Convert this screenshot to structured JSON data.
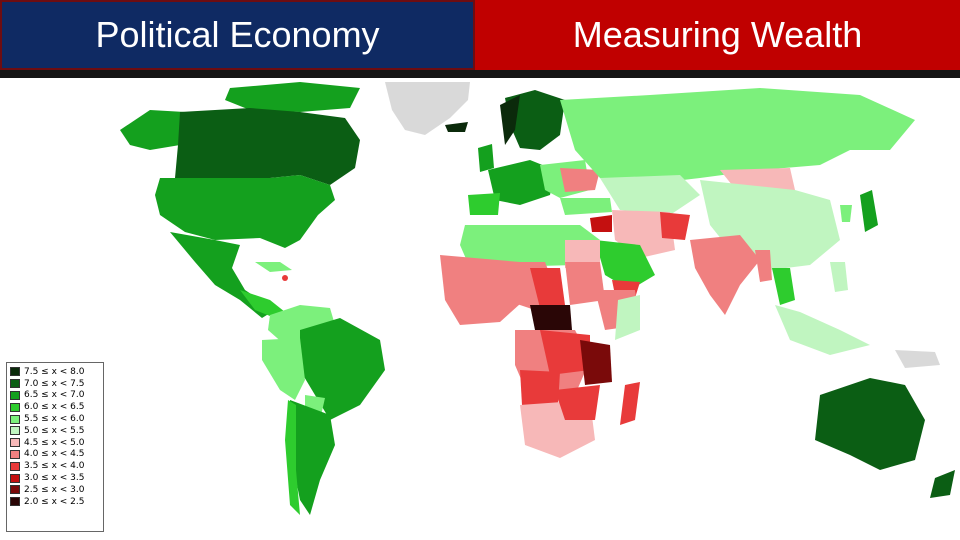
{
  "header": {
    "left_title": "Political Economy",
    "right_title": "Measuring Wealth"
  },
  "colors": {
    "left_band": "#0f2a63",
    "right_band": "#c00000",
    "no_data": "#d9d9d9"
  },
  "legend": {
    "items": [
      {
        "label": "7.5 ≤ x < 8.0",
        "color": "#0b2a0b"
      },
      {
        "label": "7.0 ≤ x < 7.5",
        "color": "#0b5e14"
      },
      {
        "label": "6.5 ≤ x < 7.0",
        "color": "#14a01e"
      },
      {
        "label": "6.0 ≤ x < 6.5",
        "color": "#2ecc2e"
      },
      {
        "label": "5.5 ≤ x < 6.0",
        "color": "#7cf07c"
      },
      {
        "label": "5.0 ≤ x < 5.5",
        "color": "#c0f5c0"
      },
      {
        "label": "4.5 ≤ x < 5.0",
        "color": "#f7b8b8"
      },
      {
        "label": "4.0 ≤ x < 4.5",
        "color": "#f08080"
      },
      {
        "label": "3.5 ≤ x < 4.0",
        "color": "#e83a3a"
      },
      {
        "label": "3.0 ≤ x < 3.5",
        "color": "#c41010"
      },
      {
        "label": "2.5 ≤ x < 3.0",
        "color": "#7a0a0a"
      },
      {
        "label": "2.0 ≤ x < 2.5",
        "color": "#2a0606"
      }
    ]
  }
}
